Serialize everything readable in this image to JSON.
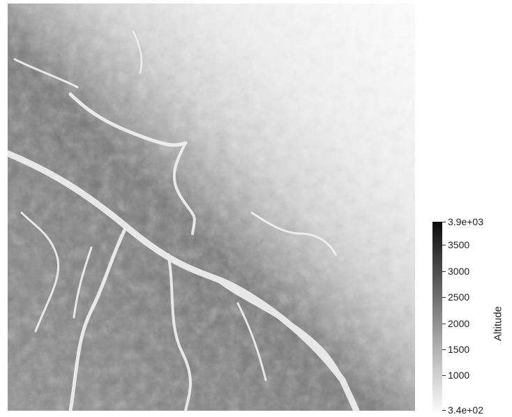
{
  "scalar_bar": {
    "title": "Altitude",
    "max_label": "3.9e+03",
    "min_label": "3.4e+02",
    "ticks": [
      {
        "label": "3500",
        "value": 3500
      },
      {
        "label": "3000",
        "value": 3000
      },
      {
        "label": "2500",
        "value": 2500
      },
      {
        "label": "2000",
        "value": 2000
      },
      {
        "label": "1500",
        "value": 1500
      },
      {
        "label": "1000",
        "value": 1000
      }
    ],
    "range": [
      340,
      3900
    ]
  },
  "colors": {
    "high": "#0b0b0b",
    "low": "#fafafa"
  }
}
